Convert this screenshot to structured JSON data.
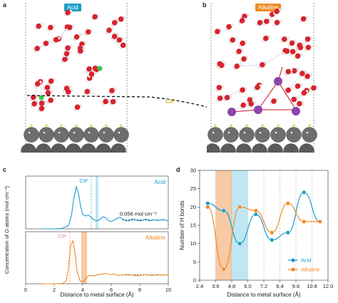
{
  "panels": {
    "a": {
      "letter": "a",
      "tag": "Acid",
      "tag_color": "#1a9dc8"
    },
    "b": {
      "letter": "b",
      "tag": "Alkaline",
      "tag_color": "#f08a24"
    },
    "cip_label": "CIP",
    "c": {
      "letter": "c"
    },
    "d": {
      "letter": "d"
    }
  },
  "chart_data": [
    {
      "type": "line",
      "panel": "c",
      "ylabel": "Concentration of O atoms (mol cm⁻³)",
      "xlabel": "Distance to metal surface (Å)",
      "xlim": [
        0,
        10
      ],
      "x_ticks": [
        "0",
        "2",
        "4",
        "6",
        "8",
        "10"
      ],
      "series": [
        {
          "name": "Acid",
          "color": "#1a9dc8",
          "x": [
            1.2,
            2.0,
            2.5,
            3.0,
            3.2,
            3.4,
            3.55,
            3.7,
            3.85,
            4.0,
            4.2,
            4.4,
            4.6,
            4.8,
            5.0,
            5.2,
            5.4,
            5.6,
            5.8,
            6.0,
            6.3,
            6.6,
            6.9,
            7.2,
            7.5,
            7.8,
            8.1,
            8.4,
            8.7,
            9.0,
            9.3,
            9.6,
            10.0
          ],
          "y": [
            0,
            0,
            0.002,
            0.02,
            0.08,
            0.2,
            0.26,
            0.22,
            0.14,
            0.09,
            0.08,
            0.085,
            0.07,
            0.055,
            0.05,
            0.058,
            0.075,
            0.07,
            0.052,
            0.045,
            0.06,
            0.072,
            0.055,
            0.048,
            0.062,
            0.052,
            0.05,
            0.06,
            0.05,
            0.056,
            0.052,
            0.058,
            0.05
          ],
          "annotation": "0.056 mol cm⁻³",
          "cip_label": "CIP",
          "cip_x": 4.6,
          "shaded_band": [
            4.9,
            5.1
          ]
        },
        {
          "name": "Alkaline",
          "color": "#f08a24",
          "x": [
            1.2,
            2.2,
            2.6,
            2.85,
            3.0,
            3.15,
            3.3,
            3.45,
            3.6,
            3.8,
            4.0,
            4.2,
            4.4,
            4.6,
            4.8,
            5.0,
            5.3,
            5.6,
            5.9,
            6.2,
            6.5,
            6.8,
            7.1,
            7.4,
            7.7,
            8.0,
            8.3,
            8.6,
            8.9,
            9.2,
            9.5,
            9.8,
            10.0
          ],
          "y": [
            0,
            0,
            0.002,
            0.02,
            0.1,
            0.24,
            0.27,
            0.2,
            0.08,
            0.02,
            0.01,
            0.03,
            0.05,
            0.052,
            0.05,
            0.055,
            0.06,
            0.065,
            0.058,
            0.06,
            0.052,
            0.055,
            0.058,
            0.056,
            0.05,
            0.052,
            0.058,
            0.055,
            0.052,
            0.058,
            0.054,
            0.056,
            0.055
          ],
          "annotation": "",
          "cip_label": "CIP",
          "cip_x": 3.1,
          "shaded_band": [
            3.9,
            4.3
          ]
        }
      ]
    },
    {
      "type": "line",
      "panel": "d",
      "ylabel": "Number of H bonds",
      "xlabel": "Distance to metal surface (Å)",
      "xlim": [
        2.4,
        12.0
      ],
      "ylim": [
        0,
        30
      ],
      "x_ticks": [
        "2.4",
        "3.6",
        "4.8",
        "6.0",
        "7.2",
        "8.4",
        "9.6",
        "10.8",
        "12.0"
      ],
      "y_ticks": [
        "0",
        "5",
        "10",
        "15",
        "20",
        "25",
        "30"
      ],
      "shaded_bands": [
        {
          "range": [
            3.6,
            4.8
          ],
          "color": "#f7c9a4"
        },
        {
          "range": [
            4.8,
            6.0
          ],
          "color": "#bfe6f3"
        }
      ],
      "legend": "bottom-right",
      "series": [
        {
          "name": "Acid",
          "color": "#1a9dc8",
          "x": [
            3.0,
            4.2,
            5.4,
            6.6,
            7.8,
            9.0,
            10.2,
            11.4
          ],
          "y": [
            21,
            19,
            10,
            18,
            11,
            13,
            24,
            16
          ]
        },
        {
          "name": "Alkaline",
          "color": "#f08a24",
          "x": [
            3.0,
            4.2,
            5.4,
            6.6,
            7.8,
            9.0,
            10.2,
            11.4
          ],
          "y": [
            20,
            3,
            20,
            19,
            13,
            21,
            16,
            16
          ]
        }
      ]
    }
  ]
}
